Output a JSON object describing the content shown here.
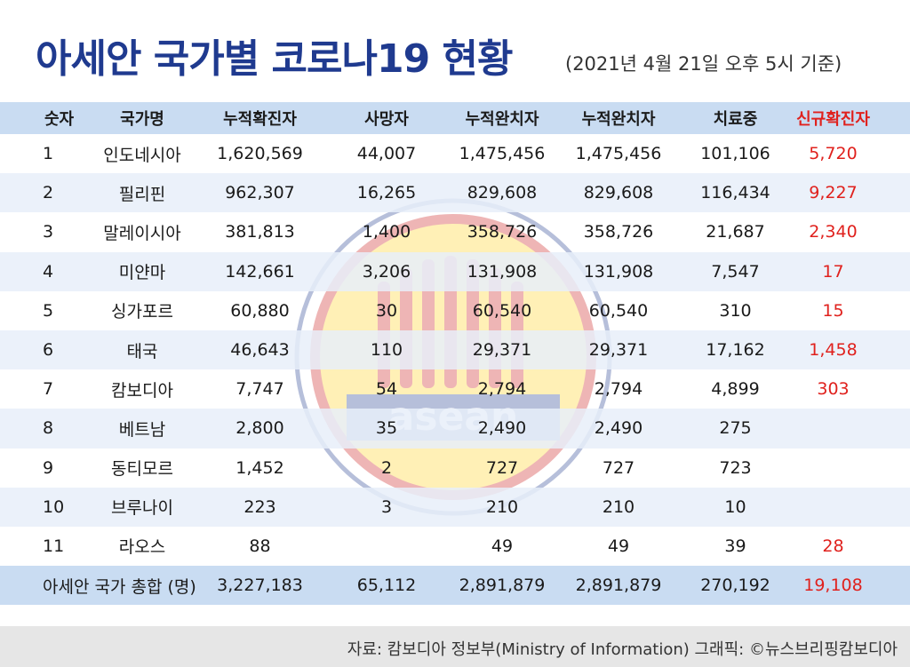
{
  "header": {
    "title": "아세안 국가별 코로나19 현황",
    "subtitle": "(2021년 4월 21일 오후 5시 기준)"
  },
  "watermark": {
    "text": "asean"
  },
  "table": {
    "columns": [
      "숫자",
      "국가명",
      "누적확진자",
      "사망자",
      "누적완치자",
      "누적완치자",
      "치료중",
      "신규확진자"
    ],
    "rows": [
      [
        "1",
        "인도네시아",
        "1,620,569",
        "44,007",
        "1,475,456",
        "1,475,456",
        "101,106",
        "5,720"
      ],
      [
        "2",
        "필리핀",
        "962,307",
        "16,265",
        "829,608",
        "829,608",
        "116,434",
        "9,227"
      ],
      [
        "3",
        "말레이시아",
        "381,813",
        "1,400",
        "358,726",
        "358,726",
        "21,687",
        "2,340"
      ],
      [
        "4",
        "미얀마",
        "142,661",
        "3,206",
        "131,908",
        "131,908",
        "7,547",
        "17"
      ],
      [
        "5",
        "싱가포르",
        "60,880",
        "30",
        "60,540",
        "60,540",
        "310",
        "15"
      ],
      [
        "6",
        "태국",
        "46,643",
        "110",
        "29,371",
        "29,371",
        "17,162",
        "1,458"
      ],
      [
        "7",
        "캄보디아",
        "7,747",
        "54",
        "2,794",
        "2,794",
        "4,899",
        "303"
      ],
      [
        "8",
        "베트남",
        "2,800",
        "35",
        "2,490",
        "2,490",
        "275",
        ""
      ],
      [
        "9",
        "동티모르",
        "1,452",
        "2",
        "727",
        "727",
        "723",
        ""
      ],
      [
        "10",
        "브루나이",
        "223",
        "3",
        "210",
        "210",
        "10",
        ""
      ],
      [
        "11",
        "라오스",
        "88",
        "",
        "49",
        "49",
        "39",
        "28"
      ]
    ],
    "total": [
      "아세안 국가 총합 (명)",
      "3,227,183",
      "65,112",
      "2,891,879",
      "2,891,879",
      "270,192",
      "19,108"
    ]
  },
  "footer": {
    "source": "자료: 캄보디아 정보부(Ministry of Information) 그래픽: ©뉴스브리핑캄보디아"
  },
  "colors": {
    "title": "#1f3a8f",
    "header_band": "#c9dcf2",
    "new_cases": "#e0211d",
    "footer_band": "#e6e6e6"
  }
}
